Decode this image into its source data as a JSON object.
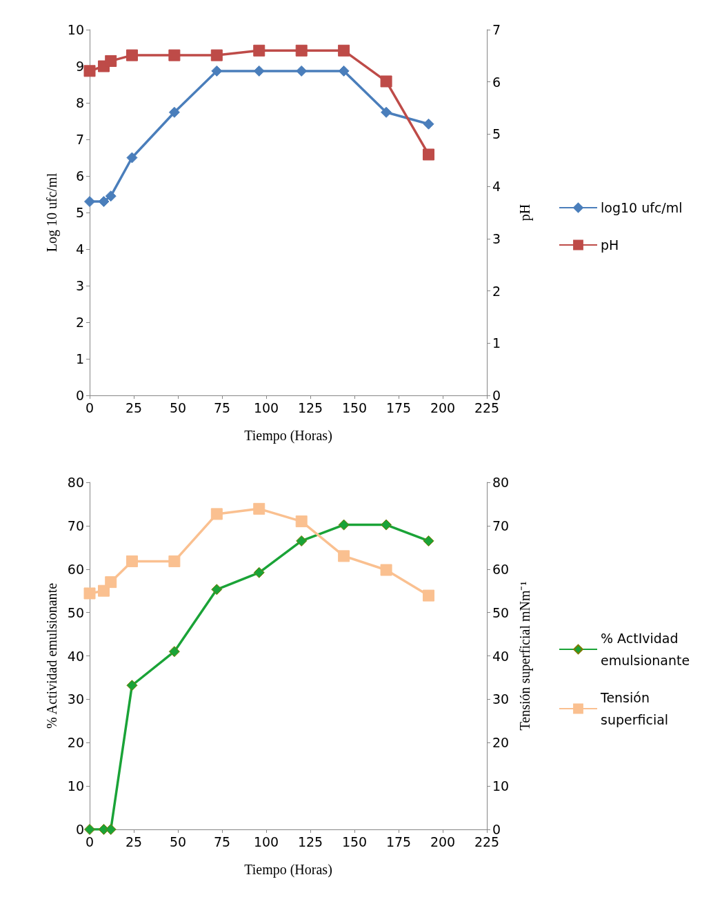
{
  "chart_data": [
    {
      "type": "line",
      "xlabel": "Tiempo (Horas)",
      "ylabel": "Log 10 ufc/ml",
      "y2label": "pH",
      "xlim": [
        0,
        225
      ],
      "xticks": [
        0,
        25,
        50,
        75,
        100,
        125,
        150,
        175,
        200,
        225
      ],
      "ylim": [
        0,
        10
      ],
      "yticks": [
        0,
        1,
        2,
        3,
        4,
        5,
        6,
        7,
        8,
        9,
        10
      ],
      "y2lim": [
        0,
        7
      ],
      "y2ticks": [
        0,
        1,
        2,
        3,
        4,
        5,
        6,
        7
      ],
      "grid": false,
      "legend": "right",
      "x": [
        0,
        8,
        12,
        24,
        48,
        72,
        96,
        120,
        144,
        168,
        192
      ],
      "series": [
        {
          "name": "log10 ufc/ml",
          "color": "#4a7ebb",
          "marker": "diamond",
          "values": [
            5.3,
            5.3,
            5.45,
            6.5,
            7.74,
            8.87,
            8.87,
            8.87,
            8.87,
            7.74,
            7.42
          ]
        },
        {
          "name": "pH",
          "color": "#be4b48",
          "marker": "square",
          "axis": "y2",
          "values": [
            6.21,
            6.3,
            6.4,
            6.51,
            6.51,
            6.51,
            6.6,
            6.6,
            6.6,
            6.01,
            4.61
          ]
        }
      ]
    },
    {
      "type": "line",
      "xlabel": "Tiempo (Horas)",
      "ylabel": "% Actividad emulsionante",
      "y2label": "Tensión superficial mNm⁻¹",
      "xlim": [
        0,
        225
      ],
      "xticks": [
        0,
        25,
        50,
        75,
        100,
        125,
        150,
        175,
        200,
        225
      ],
      "ylim": [
        0,
        80
      ],
      "yticks": [
        0,
        10,
        20,
        30,
        40,
        50,
        60,
        70,
        80
      ],
      "y2lim": [
        0,
        80
      ],
      "y2ticks": [
        0,
        10,
        20,
        30,
        40,
        50,
        60,
        70,
        80
      ],
      "grid": false,
      "legend": "right",
      "x": [
        0,
        8,
        12,
        24,
        48,
        72,
        96,
        120,
        144,
        168,
        192
      ],
      "series": [
        {
          "name": "% ActIvidad emulsionante",
          "color": "#1aa337",
          "marker": "diamond",
          "values": [
            0,
            0,
            0,
            33.2,
            41,
            55.3,
            59.2,
            66.5,
            70.2,
            70.2,
            66.5
          ]
        },
        {
          "name": "Tensión superficial",
          "color": "#fac090",
          "marker": "square",
          "axis": "y2",
          "values": [
            54.4,
            55,
            57,
            61.8,
            61.8,
            72.7,
            73.9,
            71,
            63,
            59.8,
            53.9
          ]
        }
      ]
    }
  ]
}
